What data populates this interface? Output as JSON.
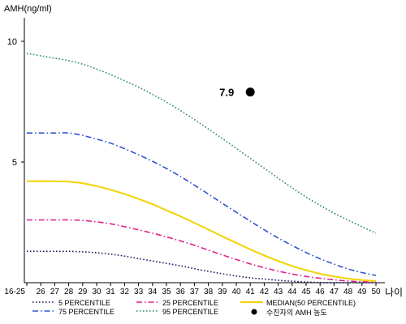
{
  "chart_data": {
    "type": "line",
    "ylabel": "AMH(ng/ml)",
    "xlabel": "나이",
    "ylim": [
      0,
      11
    ],
    "y_ticks": [
      5,
      10
    ],
    "x_tick_labels": [
      "16-25",
      "26",
      "27",
      "28",
      "29",
      "30",
      "31",
      "32",
      "33",
      "34",
      "35",
      "36",
      "37",
      "38",
      "39",
      "40",
      "41",
      "42",
      "43",
      "44",
      "45",
      "46",
      "47",
      "48",
      "49",
      "50"
    ],
    "x_positions": [
      25,
      26,
      27,
      28,
      29,
      30,
      31,
      32,
      33,
      34,
      35,
      36,
      37,
      38,
      39,
      40,
      41,
      42,
      43,
      44,
      45,
      46,
      47,
      48,
      49,
      50
    ],
    "grid": false,
    "series": [
      {
        "name": "5 PERCENTILE",
        "color": "#1a1a66",
        "dash": "dot",
        "values": [
          1.3,
          1.3,
          1.3,
          1.3,
          1.28,
          1.24,
          1.18,
          1.1,
          1.0,
          0.9,
          0.8,
          0.7,
          0.58,
          0.47,
          0.37,
          0.28,
          0.2,
          0.15,
          0.1,
          0.06,
          0.03,
          0.01,
          0.0,
          0.0,
          0.0,
          0.0
        ]
      },
      {
        "name": "25 PERCENTILE",
        "color": "#e0208a",
        "dash": "dashdot",
        "values": [
          2.6,
          2.6,
          2.6,
          2.6,
          2.58,
          2.52,
          2.44,
          2.32,
          2.19,
          2.05,
          1.9,
          1.73,
          1.55,
          1.35,
          1.15,
          0.96,
          0.78,
          0.62,
          0.48,
          0.36,
          0.26,
          0.18,
          0.12,
          0.07,
          0.04,
          0.02
        ]
      },
      {
        "name": "MEDIAN(50 PERCENTILE)",
        "color": "#f2d200",
        "dash": "solid",
        "values": [
          4.2,
          4.2,
          4.2,
          4.18,
          4.12,
          4.0,
          3.85,
          3.67,
          3.47,
          3.25,
          3.0,
          2.75,
          2.48,
          2.2,
          1.92,
          1.65,
          1.38,
          1.13,
          0.9,
          0.69,
          0.52,
          0.37,
          0.26,
          0.17,
          0.11,
          0.07
        ]
      },
      {
        "name": "75 PERCENTILE",
        "color": "#3355cc",
        "dash": "dashdot",
        "values": [
          6.2,
          6.2,
          6.2,
          6.2,
          6.1,
          5.95,
          5.78,
          5.55,
          5.3,
          5.03,
          4.73,
          4.4,
          4.04,
          3.67,
          3.29,
          2.92,
          2.55,
          2.19,
          1.85,
          1.54,
          1.25,
          0.99,
          0.77,
          0.57,
          0.42,
          0.3
        ]
      },
      {
        "name": "95 PERCENTILE",
        "color": "#2e8b57",
        "dash": "dot",
        "values": [
          9.5,
          9.4,
          9.3,
          9.2,
          9.05,
          8.85,
          8.62,
          8.37,
          8.1,
          7.8,
          7.48,
          7.13,
          6.76,
          6.37,
          5.97,
          5.56,
          5.15,
          4.74,
          4.33,
          3.93,
          3.55,
          3.2,
          2.88,
          2.59,
          2.32,
          2.05
        ]
      }
    ],
    "marker": {
      "name": "수진자의 AMH 농도",
      "x": 41,
      "y": 7.9,
      "label": "7.9",
      "color": "#000000"
    },
    "legend_placement": "bottom"
  }
}
